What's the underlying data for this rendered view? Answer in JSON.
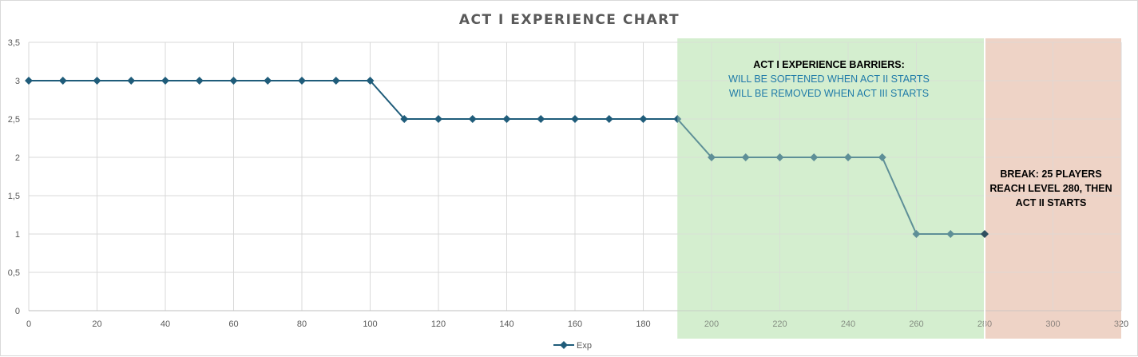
{
  "chart_data": {
    "type": "line",
    "title": "ACT I EXPERIENCE CHART",
    "xlabel": "",
    "ylabel": "",
    "xlim": [
      0,
      320
    ],
    "ylim": [
      0,
      3.5
    ],
    "x_ticks": [
      "0",
      "20",
      "40",
      "60",
      "80",
      "100",
      "120",
      "140",
      "160",
      "180",
      "200",
      "220",
      "240",
      "260",
      "280",
      "300",
      "320"
    ],
    "y_ticks": [
      "0",
      "0,5",
      "1",
      "1,5",
      "2",
      "2,5",
      "3",
      "3,5"
    ],
    "grid": true,
    "legend_position": "bottom",
    "series": [
      {
        "name": "Exp",
        "color": "#1f5c7a",
        "x": [
          0,
          10,
          20,
          30,
          40,
          50,
          60,
          70,
          80,
          90,
          100,
          110,
          120,
          130,
          140,
          150,
          160,
          170,
          180,
          190,
          200,
          210,
          220,
          230,
          240,
          250,
          260,
          270,
          280
        ],
        "y": [
          3,
          3,
          3,
          3,
          3,
          3,
          3,
          3,
          3,
          3,
          3,
          2.5,
          2.5,
          2.5,
          2.5,
          2.5,
          2.5,
          2.5,
          2.5,
          2.5,
          2,
          2,
          2,
          2,
          2,
          2,
          1,
          1,
          1
        ]
      }
    ],
    "regions": [
      {
        "x_start": 190,
        "x_end": 280,
        "color": "#d5efcf"
      },
      {
        "x_start": 280,
        "x_end": 320,
        "color": "#efd3c6"
      }
    ],
    "annotations": {
      "barriers": {
        "heading": "ACT I EXPERIENCE BARRIERS:",
        "line1": "WILL BE SOFTENED WHEN ACT II STARTS",
        "line2": "WILL BE REMOVED WHEN ACT III STARTS"
      },
      "break": {
        "line1": "BREAK: 25 PLAYERS",
        "line2": "REACH LEVEL 280, THEN",
        "line3": "ACT II STARTS"
      }
    }
  }
}
